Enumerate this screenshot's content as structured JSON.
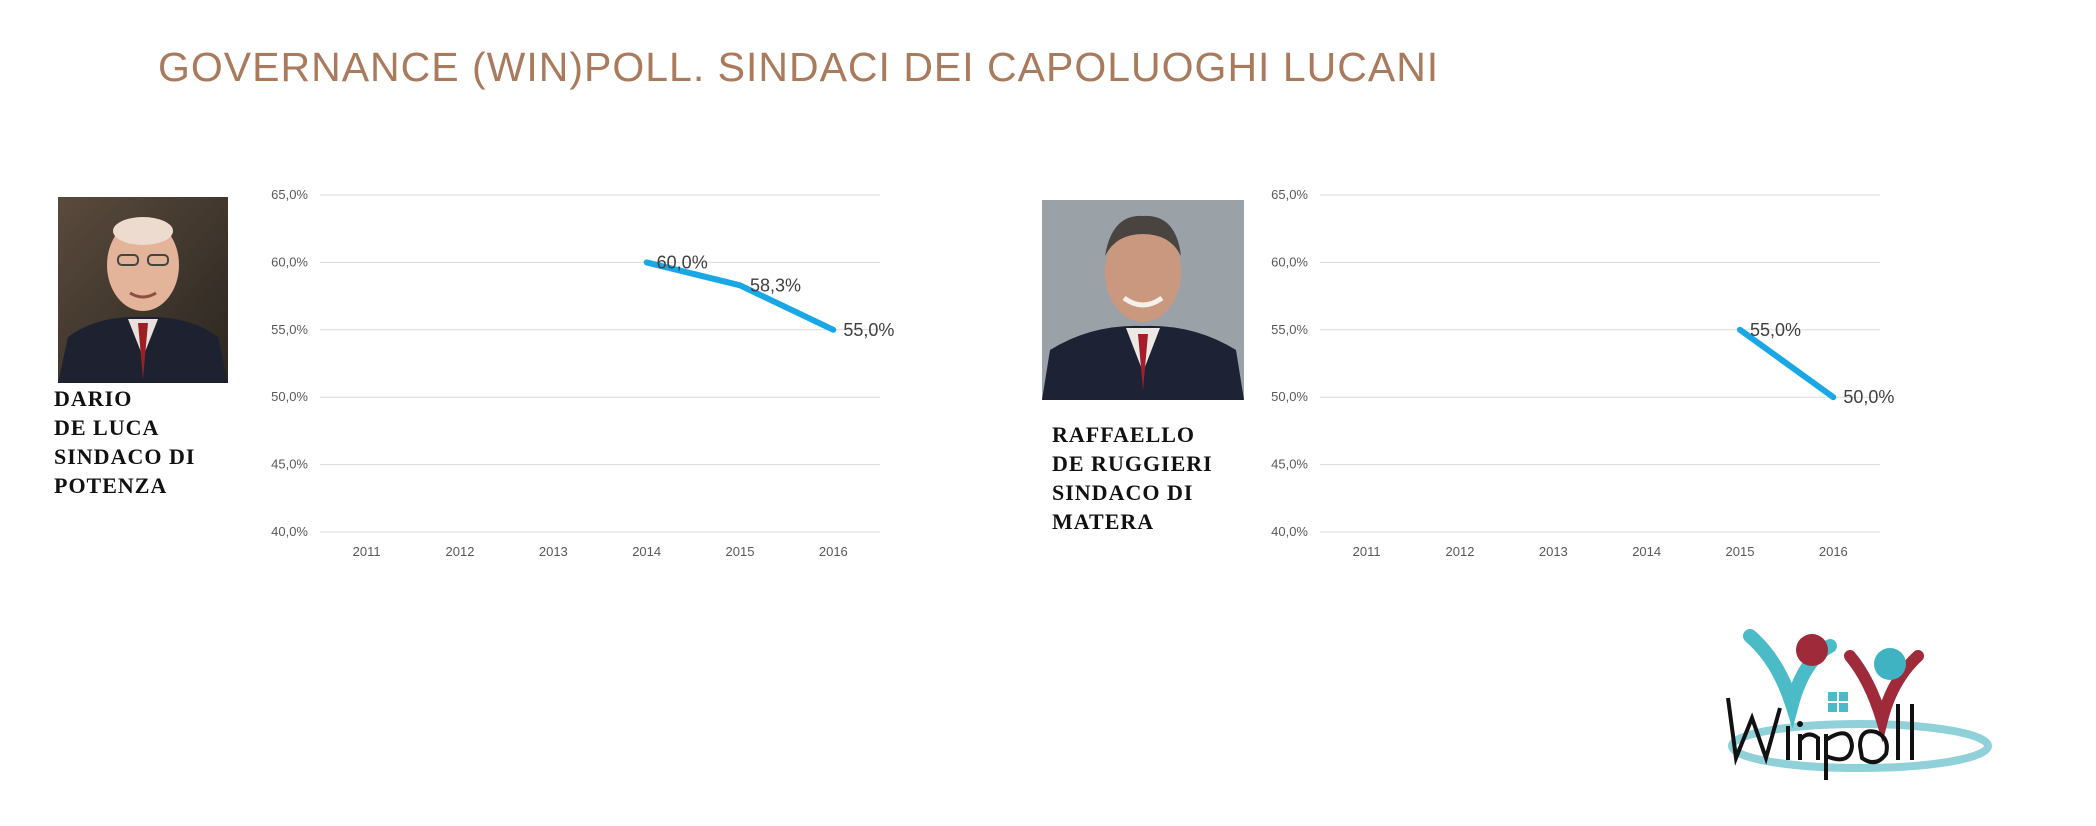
{
  "title": "GOVERNANCE (WIN)POLL. SINDACI DEI CAPOLUOGHI LUCANI",
  "panels": [
    {
      "caption_lines": [
        "DARIO",
        "DE LUCA",
        "SINDACO DI",
        "POTENZA"
      ],
      "photo": "portrait-photo"
    },
    {
      "caption_lines": [
        "RAFFAELLO",
        "DE RUGGIERI",
        "SINDACO DI",
        "MATERA"
      ],
      "photo": "portrait-photo"
    }
  ],
  "logo": {
    "text": "Winpoll",
    "colors": [
      "#4bbcc7",
      "#9e2a3a"
    ]
  },
  "chart_data": [
    {
      "type": "line",
      "title": "",
      "categories": [
        "2011",
        "2012",
        "2013",
        "2014",
        "2015",
        "2016"
      ],
      "ylim": [
        40,
        65
      ],
      "yticks": [
        "40,0%",
        "45,0%",
        "50,0%",
        "55,0%",
        "60,0%",
        "65,0%"
      ],
      "ytick_values": [
        40,
        45,
        50,
        55,
        60,
        65
      ],
      "grid": true,
      "line_color": "#1aa7e6",
      "series": [
        {
          "values": [
            null,
            null,
            null,
            60.0,
            58.3,
            55.0
          ],
          "labels": [
            "",
            "",
            "",
            "60,0%",
            "58,3%",
            "55,0%"
          ]
        }
      ]
    },
    {
      "type": "line",
      "title": "",
      "categories": [
        "2011",
        "2012",
        "2013",
        "2014",
        "2015",
        "2016"
      ],
      "ylim": [
        40,
        65
      ],
      "yticks": [
        "40,0%",
        "45,0%",
        "50,0%",
        "55,0%",
        "60,0%",
        "65,0%"
      ],
      "ytick_values": [
        40,
        45,
        50,
        55,
        60,
        65
      ],
      "grid": true,
      "line_color": "#1aa7e6",
      "series": [
        {
          "values": [
            null,
            null,
            null,
            null,
            55.0,
            50.0
          ],
          "labels": [
            "",
            "",
            "",
            "",
            "55,0%",
            "50,0%"
          ]
        }
      ]
    }
  ]
}
